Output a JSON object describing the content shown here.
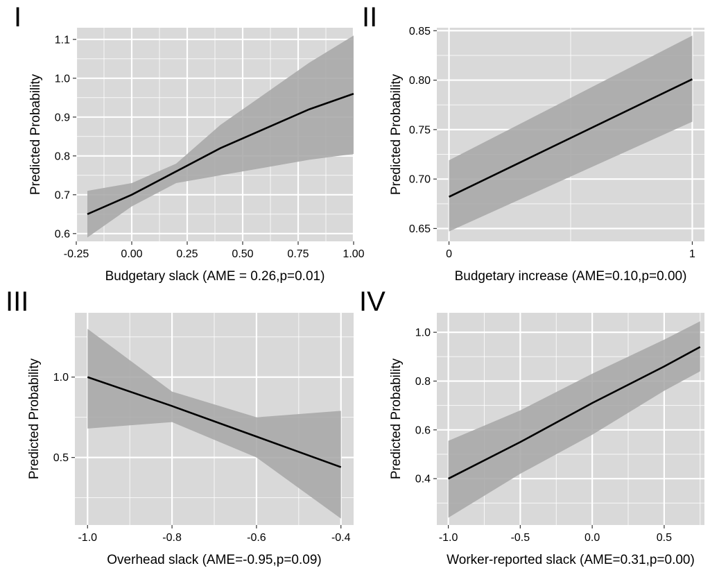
{
  "chart_data": [
    {
      "type": "line",
      "panel_label": "I",
      "xlabel": "Budgetary slack (AME = 0.26,p=0.01)",
      "ylabel": "Predicted Probability",
      "xlim": [
        -0.25,
        1.0
      ],
      "ylim": [
        0.58,
        1.13
      ],
      "x_ticks": [
        -0.25,
        0.0,
        0.25,
        0.5,
        0.75,
        1.0
      ],
      "x_tick_labels": [
        "-0.25",
        "0.00",
        "0.25",
        "0.50",
        "0.75",
        "1.00"
      ],
      "y_ticks": [
        0.6,
        0.7,
        0.8,
        0.9,
        1.0,
        1.1
      ],
      "y_tick_labels": [
        "0.6",
        "0.7",
        "0.8",
        "0.9",
        "1.0",
        "1.1"
      ],
      "series": [
        {
          "x": [
            -0.2,
            0.0,
            0.2,
            0.4,
            0.6,
            0.8,
            1.0
          ],
          "y": [
            0.65,
            0.7,
            0.76,
            0.82,
            0.87,
            0.92,
            0.96
          ],
          "lower": [
            0.59,
            0.67,
            0.73,
            0.75,
            0.77,
            0.79,
            0.805
          ],
          "upper": [
            0.71,
            0.73,
            0.78,
            0.88,
            0.96,
            1.04,
            1.11
          ]
        }
      ],
      "grid": true
    },
    {
      "type": "line",
      "panel_label": "II",
      "xlabel": "Budgetary increase (AME=0.10,p=0.00)",
      "ylabel": "Predicted Probability",
      "xlim": [
        -0.05,
        1.05
      ],
      "ylim": [
        0.637,
        0.853
      ],
      "x_ticks": [
        0,
        1
      ],
      "x_tick_labels": [
        "0",
        "1"
      ],
      "y_ticks": [
        0.65,
        0.7,
        0.75,
        0.8,
        0.85
      ],
      "y_tick_labels": [
        "0.65",
        "0.70",
        "0.75",
        "0.80",
        "0.85"
      ],
      "series": [
        {
          "x": [
            0,
            1
          ],
          "y": [
            0.682,
            0.801
          ],
          "lower": [
            0.647,
            0.758
          ],
          "upper": [
            0.719,
            0.845
          ]
        }
      ],
      "grid": true
    },
    {
      "type": "line",
      "panel_label": "III",
      "xlabel": "Overhead slack (AME=-0.95,p=0.09)",
      "ylabel": "Predicted Probability",
      "xlim": [
        -1.03,
        -0.37
      ],
      "ylim": [
        0.08,
        1.4
      ],
      "x_ticks": [
        -1.0,
        -0.8,
        -0.6,
        -0.4
      ],
      "x_tick_labels": [
        "-1.0",
        "-0.8",
        "-0.6",
        "-0.4"
      ],
      "y_ticks": [
        0.5,
        1.0
      ],
      "y_tick_labels": [
        "0.5",
        "1.0"
      ],
      "series": [
        {
          "x": [
            -1.0,
            -0.8,
            -0.6,
            -0.4
          ],
          "y": [
            1.0,
            0.82,
            0.63,
            0.44
          ],
          "lower": [
            0.68,
            0.72,
            0.5,
            0.12
          ],
          "upper": [
            1.3,
            0.91,
            0.75,
            0.79
          ]
        }
      ],
      "grid": true
    },
    {
      "type": "line",
      "panel_label": "IV",
      "xlabel": "Worker-reported slack (AME=0.31,p=0.00)",
      "ylabel": "Predicted Probability",
      "xlim": [
        -1.08,
        0.78
      ],
      "ylim": [
        0.21,
        1.08
      ],
      "x_ticks": [
        -1.0,
        -0.5,
        0.0,
        0.5
      ],
      "x_tick_labels": [
        "-1.0",
        "-0.5",
        "0.0",
        "0.5"
      ],
      "y_ticks": [
        0.4,
        0.6,
        0.8,
        1.0
      ],
      "y_tick_labels": [
        "0.4",
        "0.6",
        "0.8",
        "1.0"
      ],
      "series": [
        {
          "x": [
            -1.0,
            -0.5,
            0.0,
            0.5,
            0.75
          ],
          "y": [
            0.4,
            0.55,
            0.71,
            0.86,
            0.94
          ],
          "lower": [
            0.24,
            0.42,
            0.58,
            0.76,
            0.84
          ],
          "upper": [
            0.555,
            0.68,
            0.83,
            0.97,
            1.045
          ]
        }
      ],
      "grid": true
    }
  ],
  "colors": {
    "panel_background": "#d9d9d9",
    "grid_major": "#ffffff",
    "confidence_band": "#a6a6a6",
    "line": "#000000"
  }
}
